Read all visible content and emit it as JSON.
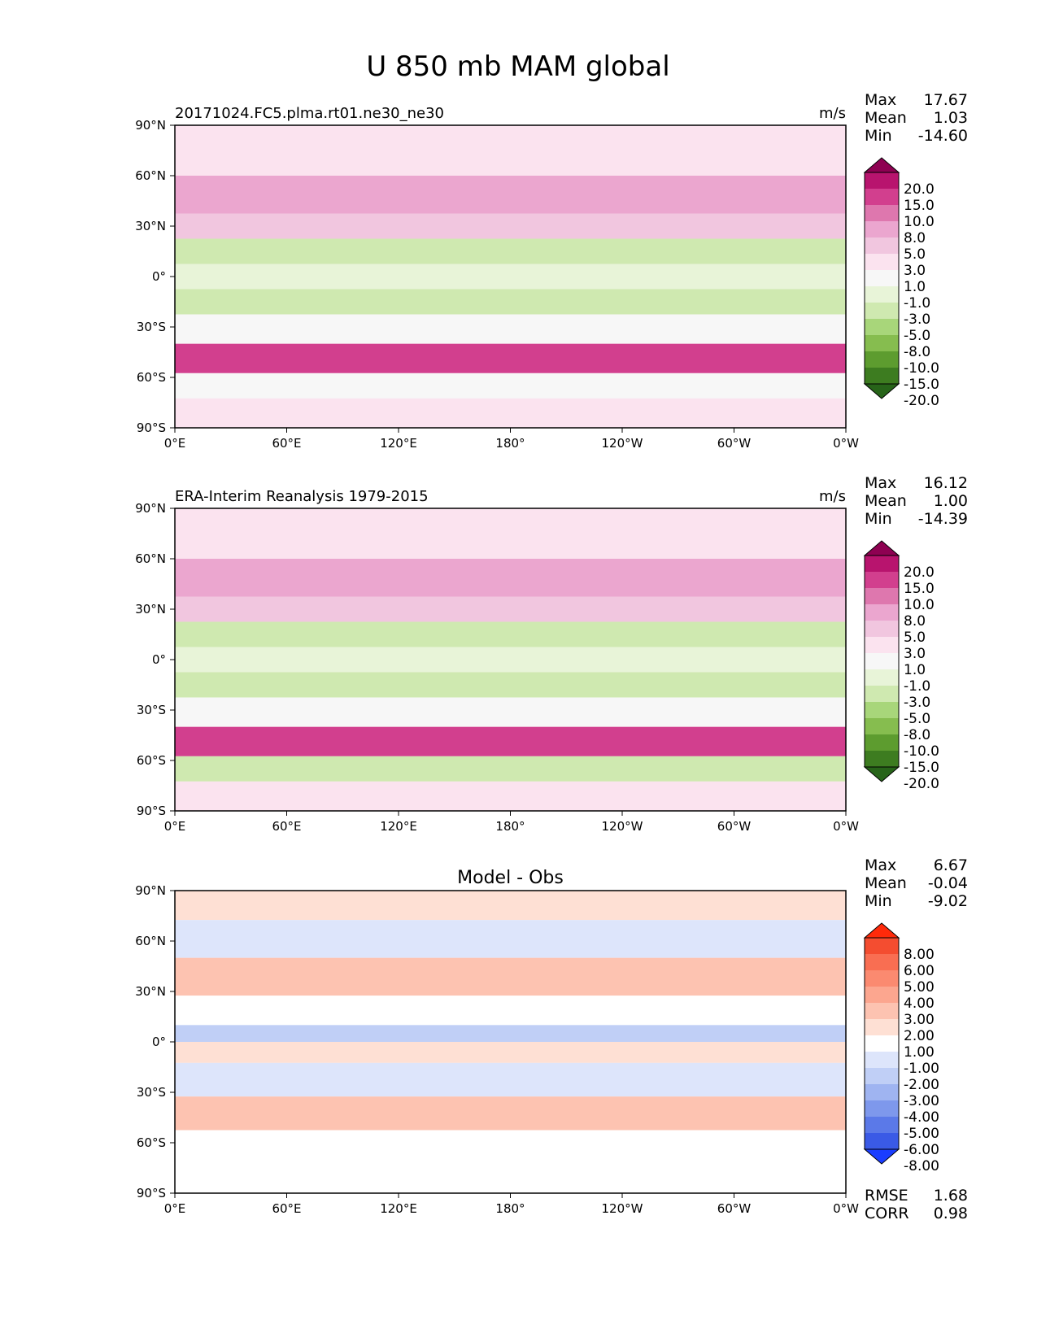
{
  "title": "U 850 mb MAM global",
  "stats_labels": {
    "max": "Max",
    "mean": "Mean",
    "min": "Min",
    "rmse": "RMSE",
    "corr": "CORR"
  },
  "axes": {
    "xticks": [
      "0°E",
      "60°E",
      "120°E",
      "180°",
      "120°W",
      "60°W",
      "0°W"
    ],
    "yticks": [
      "90°N",
      "60°N",
      "30°N",
      "0°",
      "30°S",
      "60°S",
      "90°S"
    ]
  },
  "chart_data": [
    {
      "type": "heatmap",
      "panel": "test",
      "left_title": "20171024.FC5.plma.rt01.ne30_ne30",
      "units": "m/s",
      "stats": {
        "max": "17.67",
        "mean": "1.03",
        "min": "-14.60"
      },
      "xlim": [
        0,
        360
      ],
      "ylim": [
        -90,
        90
      ],
      "colorbar": {
        "levels": [
          "20.0",
          "15.0",
          "10.0",
          "8.0",
          "5.0",
          "3.0",
          "1.0",
          "-1.0",
          "-3.0",
          "-5.0",
          "-8.0",
          "-10.0",
          "-15.0",
          "-20.0"
        ],
        "colors": [
          "#8e0152",
          "#b8146e",
          "#d23f8e",
          "#de77ae",
          "#eba6cf",
          "#f1c6df",
          "#fbe3ef",
          "#f7f7f7",
          "#e8f4d8",
          "#cfe9b0",
          "#a8d67a",
          "#86bd4f",
          "#5d9c2f",
          "#3d7c20",
          "#276419"
        ]
      },
      "field": [
        {
          "lat": 75,
          "v": 2
        },
        {
          "lat": 45,
          "v": 7
        },
        {
          "lat": 30,
          "v": 4
        },
        {
          "lat": 15,
          "v": -4
        },
        {
          "lat": 0,
          "v": -2
        },
        {
          "lat": -15,
          "v": -5
        },
        {
          "lat": -30,
          "v": 0
        },
        {
          "lat": -50,
          "v": 13
        },
        {
          "lat": -65,
          "v": 0
        },
        {
          "lat": -80,
          "v": 1
        }
      ]
    },
    {
      "type": "heatmap",
      "panel": "reference",
      "left_title": "ERA-Interim Reanalysis 1979-2015",
      "units": "m/s",
      "stats": {
        "max": "16.12",
        "mean": "1.00",
        "min": "-14.39"
      },
      "xlim": [
        0,
        360
      ],
      "ylim": [
        -90,
        90
      ],
      "colorbar": {
        "levels": [
          "20.0",
          "15.0",
          "10.0",
          "8.0",
          "5.0",
          "3.0",
          "1.0",
          "-1.0",
          "-3.0",
          "-5.0",
          "-8.0",
          "-10.0",
          "-15.0",
          "-20.0"
        ],
        "colors": [
          "#8e0152",
          "#b8146e",
          "#d23f8e",
          "#de77ae",
          "#eba6cf",
          "#f1c6df",
          "#fbe3ef",
          "#f7f7f7",
          "#e8f4d8",
          "#cfe9b0",
          "#a8d67a",
          "#86bd4f",
          "#5d9c2f",
          "#3d7c20",
          "#276419"
        ]
      },
      "field": [
        {
          "lat": 75,
          "v": 2
        },
        {
          "lat": 45,
          "v": 6
        },
        {
          "lat": 30,
          "v": 3
        },
        {
          "lat": 15,
          "v": -5
        },
        {
          "lat": 0,
          "v": -2
        },
        {
          "lat": -15,
          "v": -4
        },
        {
          "lat": -30,
          "v": 0
        },
        {
          "lat": -50,
          "v": 12
        },
        {
          "lat": -65,
          "v": -4
        },
        {
          "lat": -80,
          "v": 1
        }
      ]
    },
    {
      "type": "heatmap",
      "panel": "difference",
      "center_title": "Model - Obs",
      "stats": {
        "max": "6.67",
        "mean": "-0.04",
        "min": "-9.02"
      },
      "metrics": {
        "rmse": "1.68",
        "corr": "0.98"
      },
      "xlim": [
        0,
        360
      ],
      "ylim": [
        -90,
        90
      ],
      "colorbar": {
        "levels": [
          "8.00",
          "6.00",
          "5.00",
          "4.00",
          "3.00",
          "2.00",
          "1.00",
          "-1.00",
          "-2.00",
          "-3.00",
          "-4.00",
          "-5.00",
          "-6.00",
          "-8.00"
        ],
        "colors": [
          "#ff2a0a",
          "#f44d30",
          "#f96e52",
          "#fb8a70",
          "#fca68f",
          "#fdc3b1",
          "#fee0d4",
          "#ffffff",
          "#dde5fb",
          "#c0cff6",
          "#9fb4f1",
          "#7e98ec",
          "#5b79e8",
          "#3a5ae6",
          "#1a3dff"
        ]
      },
      "field": [
        {
          "lat": 85,
          "v": 1.5
        },
        {
          "lat": 60,
          "v": -1.5
        },
        {
          "lat": 40,
          "v": 2.5
        },
        {
          "lat": 15,
          "v": 0
        },
        {
          "lat": 5,
          "v": -2.5
        },
        {
          "lat": -5,
          "v": 1.5
        },
        {
          "lat": -20,
          "v": -1.5
        },
        {
          "lat": -45,
          "v": 2.2
        },
        {
          "lat": -60,
          "v": 0
        },
        {
          "lat": -75,
          "v": 0
        }
      ]
    }
  ]
}
